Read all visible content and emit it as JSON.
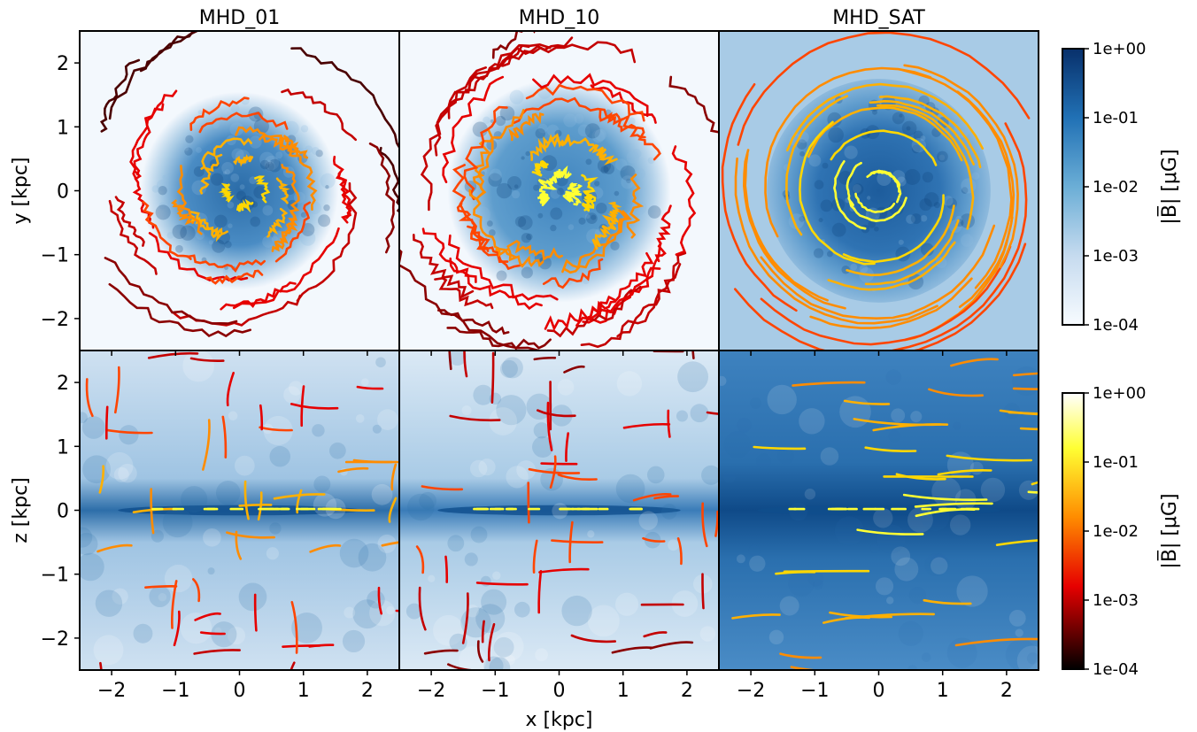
{
  "chart_data": {
    "type": "heatmap",
    "panels": [
      {
        "title": "MHD_01",
        "row": "face-on",
        "col": 0,
        "field_strength": "weak",
        "ordering": "disordered"
      },
      {
        "title": "MHD_10",
        "row": "face-on",
        "col": 1,
        "field_strength": "moderate",
        "ordering": "turbulent"
      },
      {
        "title": "MHD_SAT",
        "row": "face-on",
        "col": 2,
        "field_strength": "strong",
        "ordering": "spiral"
      },
      {
        "title": "",
        "row": "edge-on",
        "col": 0
      },
      {
        "title": "",
        "row": "edge-on",
        "col": 1
      },
      {
        "title": "",
        "row": "edge-on",
        "col": 2
      }
    ],
    "xlabel": "x [kpc]",
    "ylabel_top": "y [kpc]",
    "ylabel_bottom": "z [kpc]",
    "xlim": [
      -2.5,
      2.5
    ],
    "ylim": [
      -2.5,
      2.5
    ],
    "xticks": [
      -2,
      -1,
      0,
      1,
      2
    ],
    "yticks": [
      2,
      1,
      0,
      -1,
      -2
    ],
    "xtick_labels": [
      "−2",
      "−1",
      "0",
      "1",
      "2"
    ],
    "ytick_labels": [
      "2",
      "1",
      "0",
      "−1",
      "−2"
    ],
    "colorbars": [
      {
        "name": "background",
        "cmap": "Blues",
        "label": "|B̅| [μG]",
        "ticks": [
          "1e+00",
          "1e-01",
          "1e-02",
          "1e-03",
          "1e-04"
        ],
        "range": [
          0.0001,
          1
        ],
        "scale": "log"
      },
      {
        "name": "streamlines",
        "cmap": "hot",
        "label": "|B̅| [μG]",
        "ticks": [
          "1e+00",
          "1e-01",
          "1e-02",
          "1e-03",
          "1e-04"
        ],
        "range": [
          0.0001,
          1
        ],
        "scale": "log"
      }
    ],
    "colors": {
      "blues_low": "#f7fbff",
      "blues_high": "#08306b",
      "hot_low": "#000000",
      "hot_mid1": "#e60000",
      "hot_mid2": "#ff8c00",
      "hot_mid3": "#ffff33",
      "hot_high": "#ffffff"
    }
  }
}
